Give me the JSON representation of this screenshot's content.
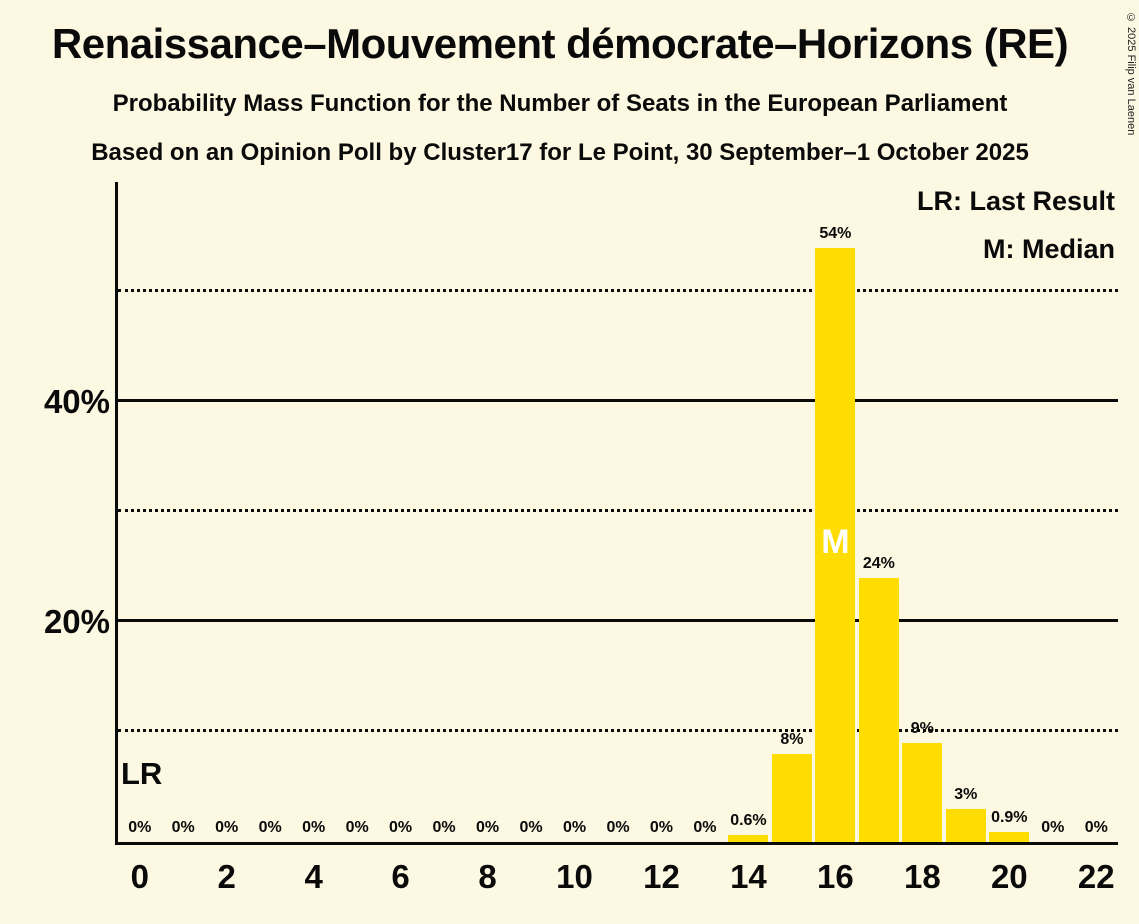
{
  "page": {
    "title": "Renaissance–Mouvement démocrate–Horizons (RE)",
    "subtitle1": "Probability Mass Function for the Number of Seats in the European Parliament",
    "subtitle2": "Based on an Opinion Poll by Cluster17 for Le Point, 30 September–1 October 2025",
    "copyright": "© 2025 Filip van Laenen"
  },
  "legend": {
    "lr": "LR: Last Result",
    "m": "M: Median"
  },
  "chart_data": {
    "type": "bar",
    "title": "Renaissance–Mouvement démocrate–Horizons (RE)",
    "xlabel": "",
    "ylabel": "",
    "categories": [
      0,
      1,
      2,
      3,
      4,
      5,
      6,
      7,
      8,
      9,
      10,
      11,
      12,
      13,
      14,
      15,
      16,
      17,
      18,
      19,
      20,
      21,
      22
    ],
    "values": [
      0,
      0,
      0,
      0,
      0,
      0,
      0,
      0,
      0,
      0,
      0,
      0,
      0,
      0,
      0.6,
      8,
      54,
      24,
      9,
      3,
      0.9,
      0,
      0
    ],
    "bar_labels": [
      "0%",
      "0%",
      "0%",
      "0%",
      "0%",
      "0%",
      "0%",
      "0%",
      "0%",
      "0%",
      "0%",
      "0%",
      "0%",
      "0%",
      "0.6%",
      "8%",
      "54%",
      "24%",
      "9%",
      "3%",
      "0.9%",
      "0%",
      "0%"
    ],
    "median_category": 16,
    "median_marker": "M",
    "last_result_label": "LR",
    "ylim": [
      0,
      60
    ],
    "grid": "horizontal",
    "legend_position": "top-right",
    "y_axis_ticks": [
      {
        "value": 20,
        "label": "20%"
      },
      {
        "value": 40,
        "label": "40%"
      }
    ],
    "gridlines": [
      {
        "value": 10,
        "style": "dotted"
      },
      {
        "value": 20,
        "style": "solid"
      },
      {
        "value": 30,
        "style": "dotted"
      },
      {
        "value": 40,
        "style": "solid"
      },
      {
        "value": 50,
        "style": "dotted"
      }
    ],
    "x_ticks": [
      0,
      2,
      4,
      6,
      8,
      10,
      12,
      14,
      16,
      18,
      20,
      22
    ],
    "colors": {
      "background": "#FCF8E2",
      "bar": "#FFDD00",
      "text": "#0A0A0A",
      "median_text": "#FFFFFF"
    }
  }
}
